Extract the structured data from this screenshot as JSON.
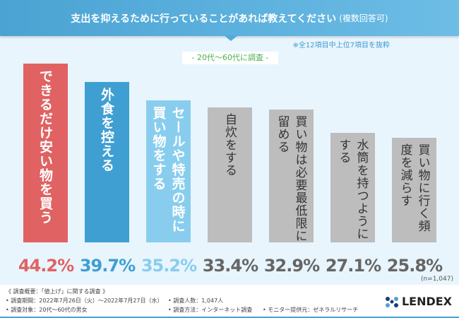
{
  "header": {
    "title": "支出を抑えるために行っていることがあれば教えてください",
    "title_suffix": "(複数回答可)"
  },
  "note": "※全12項目中上位7項目を抜粋",
  "subtitle": "- 20代〜60代に調査 -",
  "sample_size": "(n=1,047)",
  "colors": {
    "top1": "#e06262",
    "top2": "#3f9fd2",
    "top3": "#89cdee",
    "other": "#bdbdbd"
  },
  "chart_data": {
    "type": "bar",
    "categories": [
      "できるだけ安い物を買う",
      "外食を控える",
      "セールや特売の時に買い物をする",
      "自炊をする",
      "買い物は必要最低限に留める",
      "水筒を持つようにする",
      "買い物に行く頻度を減らす"
    ],
    "values": [
      44.2,
      39.7,
      35.2,
      33.4,
      32.9,
      27.1,
      25.8
    ],
    "value_labels": [
      "44.2%",
      "39.7%",
      "35.2%",
      "33.4%",
      "32.9%",
      "27.1%",
      "25.8%"
    ],
    "unit": "%"
  },
  "footer": {
    "heading": "《 調査概要：「値上げ」に関する調査 》",
    "period": "• 調査期間：2022年7月26日（火）〜2022年7月27日（水）",
    "target": "• 調査対象：20代〜60代の男女",
    "count": "• 調査人数：1,047人",
    "method": "• 調査方法：インターネット調査",
    "provider": "• モニター提供元：ゼネラルリサーチ",
    "logo": "LENDEX"
  }
}
